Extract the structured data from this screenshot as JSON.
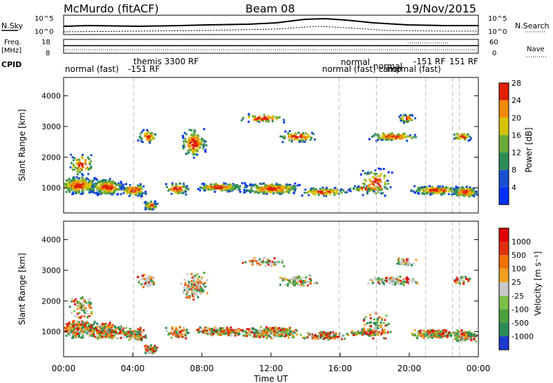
{
  "header": {
    "station": "McMurdo (fitACF)",
    "beam": "Beam 08",
    "date": "19/Nov/2015"
  },
  "top_panel": {
    "nsky_label": "N.Sky",
    "nsearch_label": "N.Search",
    "left_top_tick": "10^5",
    "left_bottom_tick": "10^0",
    "right_top_tick": "10^5",
    "right_bottom_tick": "10^0",
    "freq_label_1": "Freq.",
    "freq_label_2": "[MHz]",
    "freq_top_tick": "18",
    "freq_bottom_tick": "8",
    "nave_label": "Nave",
    "nave_top_tick": "60",
    "nave_bottom_tick": "0",
    "cpid_label": "CPID",
    "cpid_entries": [
      "normal (fast)",
      "-151 RF",
      "themis 3300 RF",
      "normal (fast) camp",
      "normal",
      "normal",
      "normal (fast)",
      "-151 RF",
      "151 RF"
    ]
  },
  "chart_data": [
    {
      "type": "heatmap",
      "name": "Power",
      "ylabel": "Slant Range [km]",
      "ylim": [
        180,
        4600
      ],
      "yticks": [
        "1000",
        "2000",
        "3000",
        "4000"
      ],
      "xlim_hours": [
        0,
        24
      ],
      "colorbar_label": "Power [dB]",
      "colorbar_ticks": [
        "4",
        "8",
        "12",
        "16",
        "20",
        "24",
        "28"
      ],
      "colorbar_colors": [
        "#0030ff",
        "#1a4fd0",
        "#2e8b57",
        "#6aaa3a",
        "#d6c200",
        "#f08a00",
        "#e02000"
      ]
    },
    {
      "type": "heatmap",
      "name": "Velocity",
      "ylabel": "Slant Range [km]",
      "ylim": [
        180,
        4600
      ],
      "yticks": [
        "1000",
        "2000",
        "3000",
        "4000"
      ],
      "xlim_hours": [
        0,
        24
      ],
      "colorbar_label": "Velocity [m s⁻¹]",
      "colorbar_ticks": [
        "1000",
        "500",
        "100",
        "25",
        "-25",
        "-100",
        "-500",
        "-1000"
      ],
      "colorbar_colors": [
        "#1a3ad0",
        "#2e8b57",
        "#4aa03a",
        "#7cc04a",
        "#c8c8c8",
        "#f0a020",
        "#f07000",
        "#e03010",
        "#e00000"
      ]
    }
  ],
  "x_axis": {
    "ticks": [
      "00:00",
      "04:00",
      "08:00",
      "12:00",
      "16:00",
      "20:00",
      "00:00"
    ],
    "label": "Time UT"
  }
}
